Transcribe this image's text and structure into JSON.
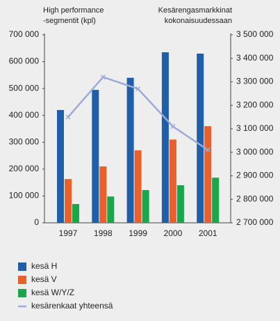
{
  "chart_data": {
    "type": "bar",
    "ylabel": [
      "High performance",
      "-segmentit (kpl)"
    ],
    "y2label": [
      "Kesärengasmarkkinat",
      "kokonaisuudessaan"
    ],
    "categories": [
      "1997",
      "1998",
      "1999",
      "2000",
      "2001"
    ],
    "series": [
      {
        "name": "kesä H",
        "color": "#1f5ea8",
        "values": [
          420000,
          495000,
          540000,
          635000,
          630000
        ]
      },
      {
        "name": "kesä V",
        "color": "#e8602c",
        "values": [
          163000,
          210000,
          270000,
          310000,
          360000
        ]
      },
      {
        "name": "kesä W/Y/Z",
        "color": "#1aa64a",
        "values": [
          70000,
          98000,
          122000,
          140000,
          168000
        ]
      },
      {
        "name": "kesärenkaat yhteensä",
        "color": "#9caad8",
        "type": "line",
        "axis": "y2",
        "values": [
          3150000,
          3320000,
          3270000,
          3110000,
          3010000
        ]
      }
    ],
    "ylim": [
      0,
      700000
    ],
    "yticks": [
      0,
      {
        "value": 100000,
        "label": "100 000"
      },
      {
        "value": 200000,
        "label": "200 000"
      },
      {
        "value": 300000,
        "label": "300 000"
      },
      {
        "value": 400000,
        "label": "400 000"
      },
      {
        "value": 500000,
        "label": "500 000"
      },
      {
        "value": 600000,
        "label": "600 000"
      },
      {
        "value": 700000,
        "label": "700 000"
      }
    ],
    "y2lim": [
      2700000,
      3500000
    ],
    "y2ticks": [
      {
        "value": 2700000,
        "label": "2 700 000"
      },
      {
        "value": 2800000,
        "label": "2 800 000"
      },
      {
        "value": 2900000,
        "label": "2 900 000"
      },
      {
        "value": 3000000,
        "label": "3 000 000"
      },
      {
        "value": 3100000,
        "label": "3 100 000"
      },
      {
        "value": 3200000,
        "label": "3 200 000"
      },
      {
        "value": 3300000,
        "label": "3 300 000"
      },
      {
        "value": 3400000,
        "label": "3 400 000"
      },
      {
        "value": 3500000,
        "label": "3 500 000"
      }
    ],
    "grid": false
  }
}
